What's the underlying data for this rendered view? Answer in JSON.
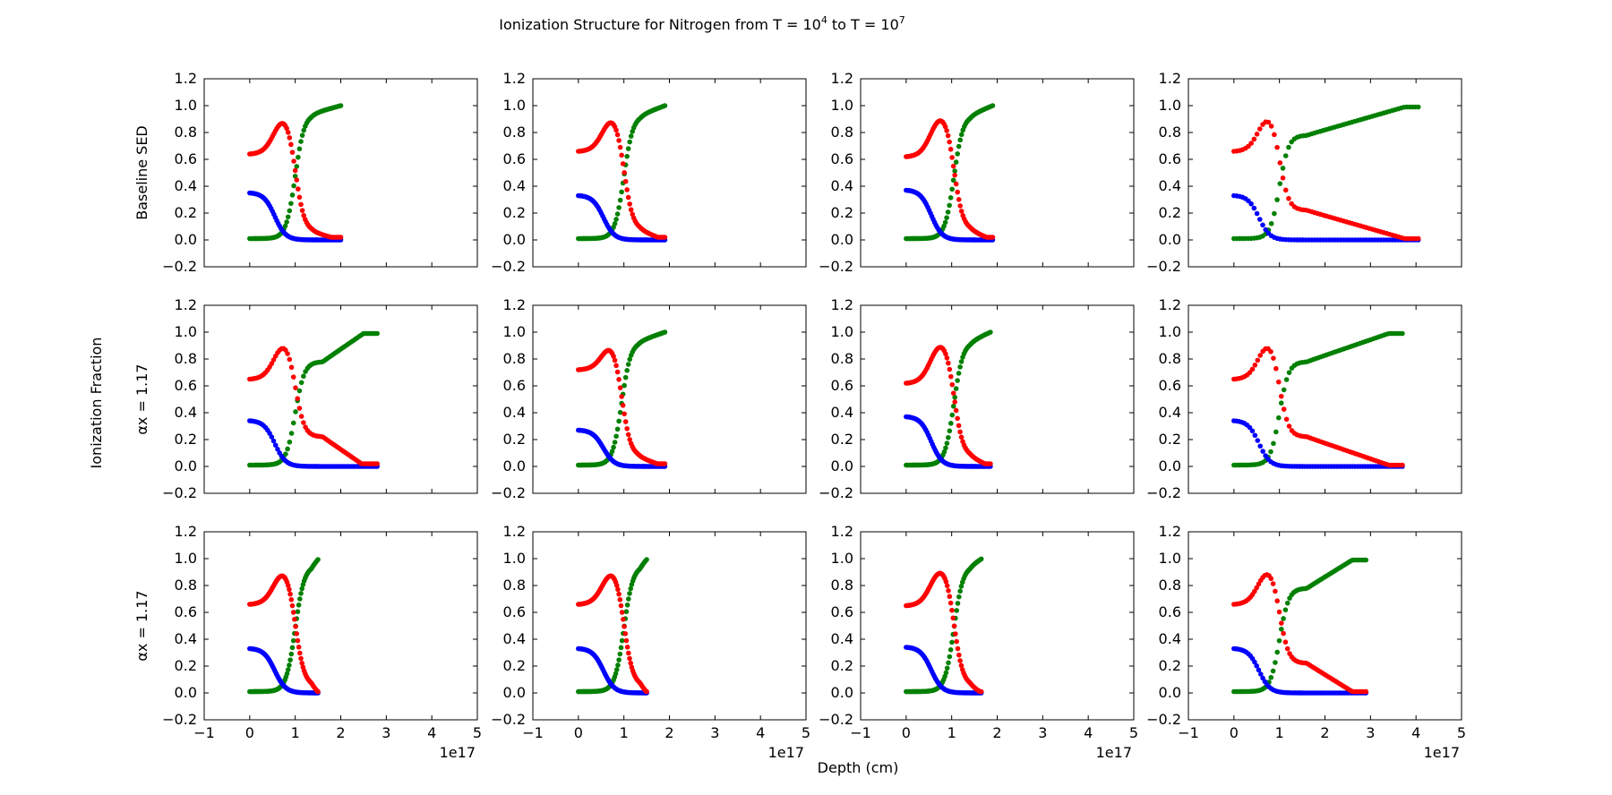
{
  "figure": {
    "title_prefix": "Ionization Structure for Nitrogen from T = ",
    "title_t1_base": "10",
    "title_t1_exp": "4",
    "title_mid": " to T = ",
    "title_t2_base": "10",
    "title_t2_exp": "7",
    "xlabel": "Depth (cm)",
    "ylabel": "Ionization Fraction",
    "row_labels": [
      "Baseline SED",
      "αx = 1.17",
      "αx = 1.17"
    ],
    "offset_text": "1e17",
    "colors": {
      "series_low": "#ff0000",
      "series_mid": "#0000ff",
      "series_high": "#008000"
    }
  },
  "chart_data": {
    "type": "scatter",
    "layout": "3x4 grid, shared x axis",
    "xlim": [
      -1,
      5
    ],
    "ylim": [
      -0.2,
      1.2
    ],
    "x_unit_multiplier": "1e17",
    "x_ticks": [
      -1,
      0,
      1,
      2,
      3,
      4,
      5
    ],
    "y_ticks": [
      -0.2,
      0.0,
      0.2,
      0.4,
      0.6,
      0.8,
      1.0,
      1.2
    ],
    "y_tick_labels": [
      "−0.2",
      "0.0",
      "0.2",
      "0.4",
      "0.6",
      "0.8",
      "1.0",
      "1.2"
    ],
    "x_tick_labels": [
      "−1",
      "0",
      "1",
      "2",
      "3",
      "4",
      "5"
    ],
    "grid": false,
    "legend": "none",
    "panels": [
      {
        "row": 0,
        "col": 0,
        "x_max": 2.0,
        "red_start": 0.63,
        "red_peak_x": 0.7,
        "blue_start": 0.35,
        "cross_x": 1.0,
        "green_shape": "fast",
        "green_knee": 0.94,
        "red_tail_end": 0.02
      },
      {
        "row": 0,
        "col": 1,
        "x_max": 1.9,
        "red_start": 0.66,
        "red_peak_x": 0.7,
        "blue_start": 0.33,
        "cross_x": 1.0,
        "green_shape": "fast",
        "green_knee": 0.93,
        "red_tail_end": 0.02
      },
      {
        "row": 0,
        "col": 2,
        "x_max": 1.9,
        "red_start": 0.62,
        "red_peak_x": 0.7,
        "blue_start": 0.37,
        "cross_x": 1.05,
        "green_shape": "fast",
        "green_knee": 0.93,
        "red_tail_end": 0.02
      },
      {
        "row": 0,
        "col": 3,
        "x_max": 4.05,
        "red_start": 0.66,
        "red_peak_x": 0.7,
        "blue_start": 0.33,
        "cross_x": 1.0,
        "green_shape": "slow",
        "green_knee": 0.86,
        "red_tail_end": 0.01
      },
      {
        "row": 1,
        "col": 0,
        "x_max": 2.8,
        "red_start": 0.65,
        "red_peak_x": 0.7,
        "blue_start": 0.34,
        "cross_x": 1.0,
        "green_shape": "slow",
        "green_knee": 0.86,
        "red_tail_end": 0.02
      },
      {
        "row": 1,
        "col": 1,
        "x_max": 1.9,
        "red_start": 0.72,
        "red_peak_x": 0.7,
        "blue_start": 0.27,
        "cross_x": 0.95,
        "green_shape": "fast",
        "green_knee": 0.93,
        "red_tail_end": 0.02
      },
      {
        "row": 1,
        "col": 2,
        "x_max": 1.85,
        "red_start": 0.62,
        "red_peak_x": 0.7,
        "blue_start": 0.37,
        "cross_x": 1.05,
        "green_shape": "fast",
        "green_knee": 0.93,
        "red_tail_end": 0.02
      },
      {
        "row": 1,
        "col": 3,
        "x_max": 3.7,
        "red_start": 0.65,
        "red_peak_x": 0.7,
        "blue_start": 0.34,
        "cross_x": 1.0,
        "green_shape": "slow",
        "green_knee": 0.86,
        "red_tail_end": 0.01
      },
      {
        "row": 2,
        "col": 0,
        "x_max": 1.5,
        "red_start": 0.66,
        "red_peak_x": 0.7,
        "blue_start": 0.33,
        "cross_x": 1.0,
        "green_shape": "fast",
        "green_knee": 0.95,
        "red_tail_end": 0.01
      },
      {
        "row": 2,
        "col": 1,
        "x_max": 1.5,
        "red_start": 0.66,
        "red_peak_x": 0.7,
        "blue_start": 0.33,
        "cross_x": 1.0,
        "green_shape": "fast",
        "green_knee": 0.95,
        "red_tail_end": 0.01
      },
      {
        "row": 2,
        "col": 2,
        "x_max": 1.65,
        "red_start": 0.65,
        "red_peak_x": 0.75,
        "blue_start": 0.34,
        "cross_x": 1.05,
        "green_shape": "fast",
        "green_knee": 0.95,
        "red_tail_end": 0.01
      },
      {
        "row": 2,
        "col": 3,
        "x_max": 2.9,
        "red_start": 0.66,
        "red_peak_x": 0.7,
        "blue_start": 0.33,
        "cross_x": 1.0,
        "green_shape": "slow",
        "green_knee": 0.86,
        "red_tail_end": 0.01
      }
    ]
  }
}
